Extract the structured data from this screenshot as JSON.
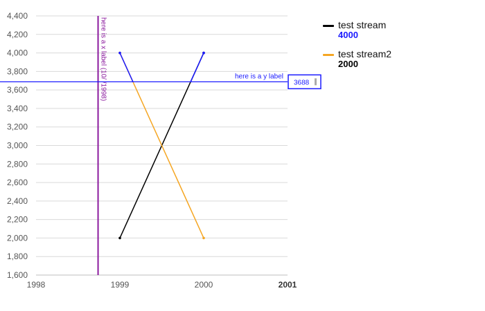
{
  "chart_data": {
    "type": "line",
    "xlabel": "",
    "ylabel": "",
    "xlim": [
      1998,
      2001
    ],
    "ylim": [
      1600,
      4400
    ],
    "x_ticks": [
      "1998",
      "1999",
      "2000",
      "2001"
    ],
    "y_ticks": [
      "1,600",
      "1,800",
      "2,000",
      "2,200",
      "2,400",
      "2,600",
      "2,800",
      "3,000",
      "3,200",
      "3,400",
      "3,600",
      "3,800",
      "4,000",
      "4,200",
      "4,400"
    ],
    "grid": true,
    "legend_position": "right",
    "series": [
      {
        "name": "test stream",
        "color": "#000000",
        "highlight_color": "#1a1aff",
        "points": [
          {
            "x": 1999,
            "y": 2000
          },
          {
            "x": 2000,
            "y": 4000
          }
        ]
      },
      {
        "name": "test stream2",
        "color": "#f5a623",
        "highlight_color": "#1a1aff",
        "points": [
          {
            "x": 1999,
            "y": 4000
          },
          {
            "x": 2000,
            "y": 2000
          }
        ]
      }
    ],
    "crosshair_x": {
      "value": 1998.74,
      "label": "here is a x label (10/ /1998)",
      "color": "#8b1a9e"
    },
    "crosshair_y": {
      "value": 3688,
      "label": "here is a y label",
      "readout": "3688",
      "color": "#1a1aff"
    }
  },
  "legend": {
    "items": [
      {
        "name": "test stream",
        "value": "4000",
        "swatch_color": "#000000",
        "value_color": "#1a1aff"
      },
      {
        "name": "test stream2",
        "value": "2000",
        "swatch_color": "#f5a623",
        "value_color": "#000000"
      }
    ]
  }
}
